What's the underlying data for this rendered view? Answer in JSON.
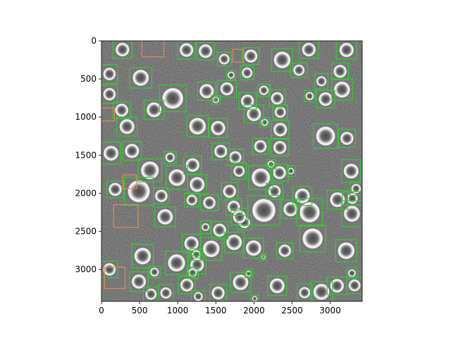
{
  "chart_data": {
    "type": "scatter",
    "title": "",
    "xlabel": "",
    "ylabel": "",
    "xlim": [
      0,
      3420
    ],
    "ylim": [
      3420,
      0
    ],
    "xticks": [
      0,
      500,
      1000,
      1500,
      2000,
      2500,
      3000
    ],
    "yticks": [
      0,
      500,
      1000,
      1500,
      2000,
      2500,
      3000
    ],
    "grid": false,
    "legend": "none",
    "series": [
      {
        "box_color": "#33cc33",
        "boxes": [
          [
            150,
            0,
            400,
            230
          ],
          [
            1000,
            0,
            1230,
            240
          ],
          [
            1250,
            20,
            1480,
            250
          ],
          [
            1520,
            150,
            1700,
            330
          ],
          [
            1850,
            90,
            2070,
            310
          ],
          [
            2230,
            100,
            2510,
            400
          ],
          [
            2590,
            0,
            2850,
            230
          ],
          [
            3080,
            0,
            3350,
            240
          ],
          [
            0,
            310,
            210,
            560
          ],
          [
            370,
            350,
            660,
            620
          ],
          [
            1640,
            390,
            1760,
            510
          ],
          [
            1820,
            330,
            2000,
            510
          ],
          [
            2480,
            290,
            2700,
            480
          ],
          [
            2800,
            430,
            2970,
            630
          ],
          [
            3020,
            290,
            3240,
            510
          ],
          [
            3020,
            500,
            3290,
            780
          ],
          [
            0,
            580,
            210,
            820
          ],
          [
            760,
            580,
            1110,
            930
          ],
          [
            1260,
            540,
            1500,
            780
          ],
          [
            1520,
            520,
            1770,
            740
          ],
          [
            1800,
            680,
            2030,
            900
          ],
          [
            2050,
            570,
            2210,
            730
          ],
          [
            2200,
            640,
            2410,
            870
          ],
          [
            2660,
            650,
            2800,
            800
          ],
          [
            2820,
            650,
            3060,
            880
          ],
          [
            1440,
            720,
            1560,
            830
          ],
          [
            150,
            800,
            380,
            1020
          ],
          [
            560,
            780,
            820,
            1030
          ],
          [
            1870,
            840,
            2130,
            1080
          ],
          [
            2250,
            840,
            2440,
            1030
          ],
          [
            200,
            1000,
            470,
            1250
          ],
          [
            1120,
            980,
            1400,
            1260
          ],
          [
            1410,
            1020,
            1650,
            1270
          ],
          [
            2080,
            1010,
            2200,
            1130
          ],
          [
            2230,
            1050,
            2460,
            1280
          ],
          [
            2780,
            1090,
            3100,
            1410
          ],
          [
            3110,
            1160,
            3330,
            1400
          ],
          [
            0,
            1330,
            250,
            1620
          ],
          [
            280,
            1320,
            520,
            1570
          ],
          [
            1450,
            1340,
            1680,
            1560
          ],
          [
            1650,
            1420,
            1860,
            1640
          ],
          [
            1980,
            1280,
            2190,
            1490
          ],
          [
            2220,
            1290,
            2460,
            1510
          ],
          [
            820,
            1450,
            980,
            1610
          ],
          [
            1080,
            1510,
            1310,
            1750
          ],
          [
            480,
            1550,
            790,
            1850
          ],
          [
            1710,
            1600,
            1900,
            1820
          ],
          [
            1930,
            1640,
            2250,
            1950
          ],
          [
            2220,
            1620,
            2450,
            1840
          ],
          [
            2430,
            1640,
            2540,
            1780
          ],
          [
            2160,
            1560,
            2290,
            1680
          ],
          [
            850,
            1640,
            1130,
            1950
          ],
          [
            1130,
            1760,
            1380,
            2010
          ],
          [
            70,
            1840,
            290,
            2060
          ],
          [
            1570,
            1860,
            1790,
            2090
          ],
          [
            2160,
            1870,
            2380,
            2080
          ],
          [
            2510,
            1910,
            2760,
            2160
          ],
          [
            2960,
            1960,
            3230,
            2210
          ],
          [
            3150,
            1560,
            3400,
            1860
          ],
          [
            3260,
            1850,
            3420,
            2030
          ],
          [
            680,
            1930,
            890,
            2140
          ],
          [
            300,
            1790,
            680,
            2160
          ],
          [
            1090,
            2000,
            1280,
            2180
          ],
          [
            1300,
            2020,
            1530,
            2230
          ],
          [
            1630,
            2070,
            1840,
            2290
          ],
          [
            1920,
            2030,
            2340,
            2420
          ],
          [
            2360,
            2090,
            2600,
            2330
          ],
          [
            2560,
            2070,
            2900,
            2430
          ],
          [
            3160,
            1980,
            3420,
            2160
          ],
          [
            3150,
            2100,
            3420,
            2440
          ],
          [
            700,
            2180,
            970,
            2440
          ],
          [
            1300,
            2360,
            1430,
            2530
          ],
          [
            1440,
            2370,
            1660,
            2600
          ],
          [
            1780,
            2290,
            1970,
            2480
          ],
          [
            1700,
            2200,
            1920,
            2420
          ],
          [
            2600,
            2420,
            2940,
            2770
          ],
          [
            1060,
            2540,
            1300,
            2780
          ],
          [
            1300,
            2580,
            1580,
            2880
          ],
          [
            1610,
            2510,
            1870,
            2780
          ],
          [
            1160,
            2730,
            1330,
            2880
          ],
          [
            1860,
            2590,
            2130,
            2850
          ],
          [
            2300,
            2650,
            2510,
            2860
          ],
          [
            3070,
            2610,
            3350,
            2900
          ],
          [
            2090,
            2800,
            2160,
            2880
          ],
          [
            400,
            2670,
            680,
            2980
          ],
          [
            840,
            2760,
            1130,
            3070
          ],
          [
            1140,
            2820,
            1370,
            3060
          ],
          [
            0,
            2890,
            210,
            3110
          ],
          [
            620,
            2960,
            770,
            3110
          ],
          [
            1120,
            2970,
            1270,
            3120
          ],
          [
            1690,
            3040,
            1960,
            3300
          ],
          [
            1880,
            3000,
            1980,
            3110
          ],
          [
            3220,
            2980,
            3350,
            3120
          ],
          [
            370,
            3030,
            610,
            3290
          ],
          [
            1010,
            3090,
            1230,
            3320
          ],
          [
            2180,
            3090,
            2430,
            3340
          ],
          [
            2960,
            3100,
            3220,
            3330
          ],
          [
            3220,
            3100,
            3420,
            3320
          ],
          [
            550,
            3230,
            750,
            3420
          ],
          [
            750,
            3200,
            940,
            3420
          ],
          [
            1180,
            3280,
            1360,
            3430
          ],
          [
            1420,
            3200,
            1640,
            3420
          ],
          [
            2570,
            3190,
            2760,
            3420
          ],
          [
            2740,
            3160,
            3030,
            3430
          ],
          [
            1960,
            3340,
            2060,
            3430
          ]
        ]
      },
      {
        "box_color": "#e08b5a",
        "boxes": [
          [
            530,
            0,
            820,
            210
          ],
          [
            1720,
            110,
            1860,
            280
          ],
          [
            0,
            880,
            170,
            1050
          ],
          [
            280,
            1760,
            460,
            1940
          ],
          [
            160,
            2150,
            480,
            2450
          ],
          [
            40,
            2970,
            310,
            3250
          ]
        ]
      }
    ]
  }
}
